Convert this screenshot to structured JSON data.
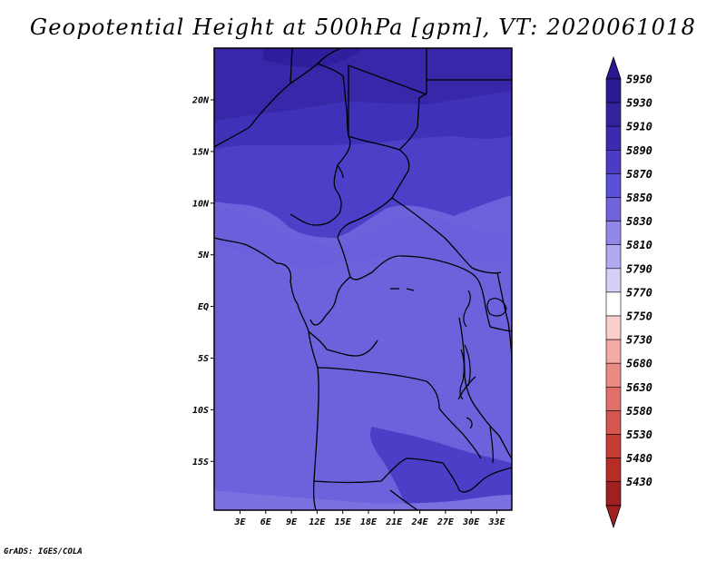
{
  "title": "Geopotential Height at 500hPa [gpm], VT: 2020061018",
  "footer": "GrADS: IGES/COLA",
  "map": {
    "lon_labels": [
      "3E",
      "6E",
      "9E",
      "12E",
      "15E",
      "18E",
      "21E",
      "24E",
      "27E",
      "30E",
      "33E"
    ],
    "lat_labels": [
      "20N",
      "15N",
      "10N",
      "5N",
      "EQ",
      "5S",
      "10S",
      "15S"
    ]
  },
  "colorbar": {
    "levels": [
      5950,
      5930,
      5910,
      5890,
      5870,
      5850,
      5830,
      5810,
      5790,
      5770,
      5750,
      5730,
      5680,
      5630,
      5580,
      5530,
      5480,
      5430
    ],
    "top_color": "#2a1690",
    "bottom_color": "#a02020",
    "colors": [
      "#2b1c94",
      "#33249e",
      "#3a2bb0",
      "#4a3cc4",
      "#5a50d8",
      "#7064dc",
      "#9088e8",
      "#b0aaf0",
      "#d4d0f8",
      "#ffffff",
      "#fbd0cc",
      "#f4aaa6",
      "#ec8a84",
      "#e0706a",
      "#d65650",
      "#c63c36",
      "#b82c26",
      "#a02020"
    ]
  }
}
